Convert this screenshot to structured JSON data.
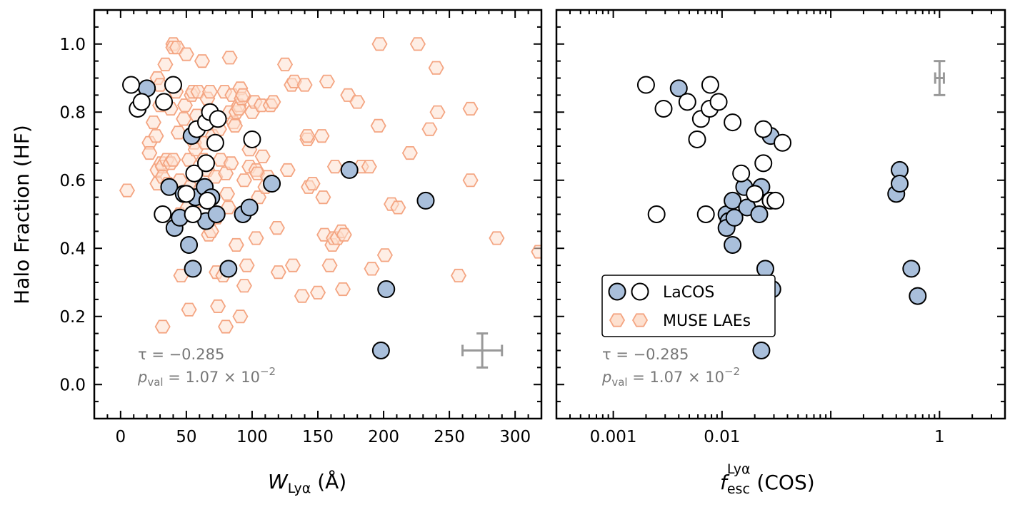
{
  "chart_data": [
    {
      "type": "scatter",
      "panel": "left",
      "xscale": "linear",
      "xlim": [
        -20,
        320
      ],
      "ylim": [
        -0.1,
        1.1
      ],
      "xticks": [
        0,
        50,
        100,
        150,
        200,
        250,
        300
      ],
      "xtick_labels": [
        "0",
        "50",
        "100",
        "150",
        "200",
        "250",
        "300"
      ],
      "yticks": [
        0.0,
        0.2,
        0.4,
        0.6,
        0.8,
        1.0
      ],
      "ytick_labels": [
        "0.0",
        "0.2",
        "0.4",
        "0.6",
        "0.8",
        "1.0"
      ],
      "xlabel_main": "W",
      "xlabel_sub": "Lyα",
      "xlabel_unit": " (Å)",
      "ylabel": "Halo Fraction (HF)",
      "stats": {
        "tau_text": "τ = −0.285",
        "p_main": "p",
        "p_sub": "val",
        "p_value": " = 1.07 × 10",
        "p_exp": "−2"
      },
      "errorbar": {
        "x": 275,
        "y": 0.1,
        "xerr": 15,
        "yerr": 0.05,
        "color": "#999999"
      },
      "series": [
        {
          "name": "MUSE LAEs",
          "marker": "hexagon",
          "edge": "#f4a582",
          "fill": "#fde0cf",
          "points": [
            [
              5,
              0.57
            ],
            [
              20,
              0.87
            ],
            [
              22,
              0.71
            ],
            [
              22,
              0.68
            ],
            [
              25,
              0.77
            ],
            [
              27,
              0.73
            ],
            [
              28,
              0.9
            ],
            [
              28,
              0.63
            ],
            [
              28,
              0.59
            ],
            [
              30,
              0.88
            ],
            [
              30,
              0.82
            ],
            [
              31,
              0.65
            ],
            [
              32,
              0.64
            ],
            [
              32,
              0.61
            ],
            [
              32,
              0.17
            ],
            [
              34,
              0.94
            ],
            [
              35,
              0.66
            ],
            [
              36,
              0.59
            ],
            [
              38,
              0.65
            ],
            [
              38,
              0.81
            ],
            [
              40,
              1.0
            ],
            [
              40,
              0.99
            ],
            [
              40,
              0.66
            ],
            [
              42,
              0.86
            ],
            [
              43,
              0.99
            ],
            [
              44,
              0.74
            ],
            [
              45,
              0.6
            ],
            [
              45,
              0.5
            ],
            [
              46,
              0.32
            ],
            [
              48,
              0.78
            ],
            [
              49,
              0.82
            ],
            [
              50,
              0.97
            ],
            [
              51,
              0.52
            ],
            [
              52,
              0.66
            ],
            [
              52,
              0.22
            ],
            [
              53,
              0.58
            ],
            [
              54,
              0.85
            ],
            [
              55,
              0.86
            ],
            [
              56,
              0.71
            ],
            [
              57,
              0.69
            ],
            [
              58,
              0.54
            ],
            [
              58,
              0.79
            ],
            [
              59,
              0.86
            ],
            [
              60,
              0.57
            ],
            [
              62,
              0.95
            ],
            [
              63,
              0.66
            ],
            [
              64,
              0.71
            ],
            [
              65,
              0.57
            ],
            [
              66,
              0.84
            ],
            [
              66,
              0.63
            ],
            [
              67,
              0.44
            ],
            [
              68,
              0.86
            ],
            [
              69,
              0.45
            ],
            [
              70,
              0.73
            ],
            [
              72,
              0.61
            ],
            [
              73,
              0.49
            ],
            [
              73,
              0.33
            ],
            [
              74,
              0.23
            ],
            [
              75,
              0.75
            ],
            [
              76,
              0.66
            ],
            [
              78,
              0.32
            ],
            [
              79,
              0.86
            ],
            [
              80,
              0.17
            ],
            [
              80,
              0.62
            ],
            [
              81,
              0.56
            ],
            [
              82,
              0.52
            ],
            [
              83,
              0.8
            ],
            [
              83,
              0.96
            ],
            [
              84,
              0.65
            ],
            [
              85,
              0.85
            ],
            [
              86,
              0.77
            ],
            [
              87,
              0.76
            ],
            [
              88,
              0.8
            ],
            [
              88,
              0.41
            ],
            [
              90,
              0.82
            ],
            [
              90,
              0.81
            ],
            [
              91,
              0.87
            ],
            [
              91,
              0.2
            ],
            [
              92,
              0.84
            ],
            [
              93,
              0.85
            ],
            [
              94,
              0.6
            ],
            [
              94,
              0.29
            ],
            [
              96,
              0.35
            ],
            [
              96,
              0.51
            ],
            [
              98,
              0.64
            ],
            [
              98,
              0.69
            ],
            [
              100,
              0.8
            ],
            [
              102,
              0.83
            ],
            [
              103,
              0.63
            ],
            [
              103,
              0.43
            ],
            [
              104,
              0.62
            ],
            [
              105,
              0.55
            ],
            [
              107,
              0.82
            ],
            [
              108,
              0.67
            ],
            [
              110,
              0.58
            ],
            [
              112,
              0.61
            ],
            [
              114,
              0.82
            ],
            [
              116,
              0.83
            ],
            [
              119,
              0.46
            ],
            [
              120,
              0.33
            ],
            [
              125,
              0.94
            ],
            [
              127,
              0.63
            ],
            [
              130,
              0.88
            ],
            [
              131,
              0.35
            ],
            [
              132,
              0.89
            ],
            [
              138,
              0.26
            ],
            [
              140,
              0.88
            ],
            [
              142,
              0.72
            ],
            [
              142,
              0.73
            ],
            [
              143,
              0.58
            ],
            [
              146,
              0.59
            ],
            [
              150,
              0.27
            ],
            [
              153,
              0.73
            ],
            [
              154,
              0.55
            ],
            [
              155,
              0.44
            ],
            [
              157,
              0.89
            ],
            [
              159,
              0.35
            ],
            [
              161,
              0.41
            ],
            [
              162,
              0.43
            ],
            [
              163,
              0.64
            ],
            [
              165,
              0.43
            ],
            [
              168,
              0.45
            ],
            [
              169,
              0.28
            ],
            [
              170,
              0.44
            ],
            [
              173,
              0.85
            ],
            [
              180,
              0.83
            ],
            [
              183,
              0.64
            ],
            [
              189,
              0.64
            ],
            [
              191,
              0.34
            ],
            [
              196,
              0.76
            ],
            [
              197,
              1.0
            ],
            [
              201,
              0.38
            ],
            [
              206,
              0.53
            ],
            [
              211,
              0.52
            ],
            [
              220,
              0.68
            ],
            [
              226,
              1.0
            ],
            [
              235,
              0.75
            ],
            [
              240,
              0.93
            ],
            [
              241,
              0.8
            ],
            [
              257,
              0.32
            ],
            [
              266,
              0.81
            ],
            [
              266,
              0.6
            ],
            [
              286,
              0.43
            ],
            [
              318,
              0.39
            ]
          ]
        },
        {
          "name": "LaCOS (blue)",
          "marker": "circle",
          "edge": "#000000",
          "fill": "#a9bfdb",
          "points": [
            [
              20,
              0.87
            ],
            [
              37,
              0.58
            ],
            [
              41,
              0.46
            ],
            [
              45,
              0.49
            ],
            [
              48,
              0.56
            ],
            [
              52,
              0.41
            ],
            [
              54,
              0.73
            ],
            [
              55,
              0.34
            ],
            [
              57,
              0.55
            ],
            [
              64,
              0.58
            ],
            [
              65,
              0.48
            ],
            [
              66,
              0.54
            ],
            [
              69,
              0.55
            ],
            [
              73,
              0.5
            ],
            [
              82,
              0.34
            ],
            [
              93,
              0.5
            ],
            [
              98,
              0.52
            ],
            [
              115,
              0.59
            ],
            [
              174,
              0.63
            ],
            [
              198,
              0.1
            ],
            [
              202,
              0.28
            ],
            [
              232,
              0.54
            ]
          ]
        },
        {
          "name": "LaCOS (open)",
          "marker": "circle",
          "edge": "#000000",
          "fill": "#ffffff",
          "points": [
            [
              8,
              0.88
            ],
            [
              13,
              0.81
            ],
            [
              16,
              0.83
            ],
            [
              33,
              0.83
            ],
            [
              32,
              0.5
            ],
            [
              40,
              0.88
            ],
            [
              50,
              0.56
            ],
            [
              55,
              0.5
            ],
            [
              56,
              0.62
            ],
            [
              58,
              0.75
            ],
            [
              65,
              0.65
            ],
            [
              65,
              0.77
            ],
            [
              66,
              0.54
            ],
            [
              68,
              0.8
            ],
            [
              72,
              0.71
            ],
            [
              74,
              0.78
            ],
            [
              100,
              0.72
            ]
          ]
        }
      ]
    },
    {
      "type": "scatter",
      "panel": "right",
      "xscale": "log",
      "xlim": [
        0.0003,
        4
      ],
      "ylim": [
        -0.1,
        1.1
      ],
      "xticks": [
        0.001,
        0.01,
        1
      ],
      "xtick_labels": [
        "0.001",
        "0.01",
        "1"
      ],
      "xlabel_main": "f",
      "xlabel_sub": "esc",
      "xlabel_sup": "Lyα",
      "xlabel_unit": " (COS)",
      "stats": {
        "tau_text": "τ = −0.285",
        "p_main": "p",
        "p_sub": "val",
        "p_value": " = 1.07 × 10",
        "p_exp": "−2"
      },
      "errorbar": {
        "x": 1.0,
        "y": 0.9,
        "xerr_log": 0.04,
        "yerr": 0.05,
        "color": "#999999"
      },
      "legend": {
        "position": "lower-left",
        "entries": [
          {
            "label": "LaCOS",
            "markers": [
              "circle-blue",
              "circle-open"
            ]
          },
          {
            "label": "MUSE LAEs",
            "markers": [
              "hexagon",
              "hexagon"
            ]
          }
        ]
      },
      "series": [
        {
          "name": "LaCOS (blue)",
          "marker": "circle",
          "edge": "#000000",
          "fill": "#a9bfdb",
          "points": [
            [
              0.004,
              0.87
            ],
            [
              0.011,
              0.5
            ],
            [
              0.0115,
              0.48
            ],
            [
              0.011,
              0.46
            ],
            [
              0.0125,
              0.54
            ],
            [
              0.013,
              0.49
            ],
            [
              0.0125,
              0.41
            ],
            [
              0.016,
              0.58
            ],
            [
              0.017,
              0.52
            ],
            [
              0.022,
              0.5
            ],
            [
              0.022,
              0.57
            ],
            [
              0.023,
              0.58
            ],
            [
              0.023,
              0.1
            ],
            [
              0.025,
              0.34
            ],
            [
              0.028,
              0.73
            ],
            [
              0.029,
              0.28
            ],
            [
              0.4,
              0.56
            ],
            [
              0.43,
              0.63
            ],
            [
              0.43,
              0.59
            ],
            [
              0.55,
              0.34
            ],
            [
              0.63,
              0.26
            ]
          ]
        },
        {
          "name": "LaCOS (open)",
          "marker": "circle",
          "edge": "#000000",
          "fill": "#ffffff",
          "points": [
            [
              0.002,
              0.88
            ],
            [
              0.0025,
              0.5
            ],
            [
              0.0029,
              0.81
            ],
            [
              0.0048,
              0.83
            ],
            [
              0.0059,
              0.72
            ],
            [
              0.0064,
              0.78
            ],
            [
              0.0071,
              0.5
            ],
            [
              0.0077,
              0.81
            ],
            [
              0.0078,
              0.88
            ],
            [
              0.0093,
              0.83
            ],
            [
              0.0125,
              0.77
            ],
            [
              0.015,
              0.62
            ],
            [
              0.02,
              0.56
            ],
            [
              0.024,
              0.75
            ],
            [
              0.024,
              0.65
            ],
            [
              0.028,
              0.54
            ],
            [
              0.031,
              0.54
            ],
            [
              0.036,
              0.71
            ]
          ]
        }
      ]
    }
  ]
}
